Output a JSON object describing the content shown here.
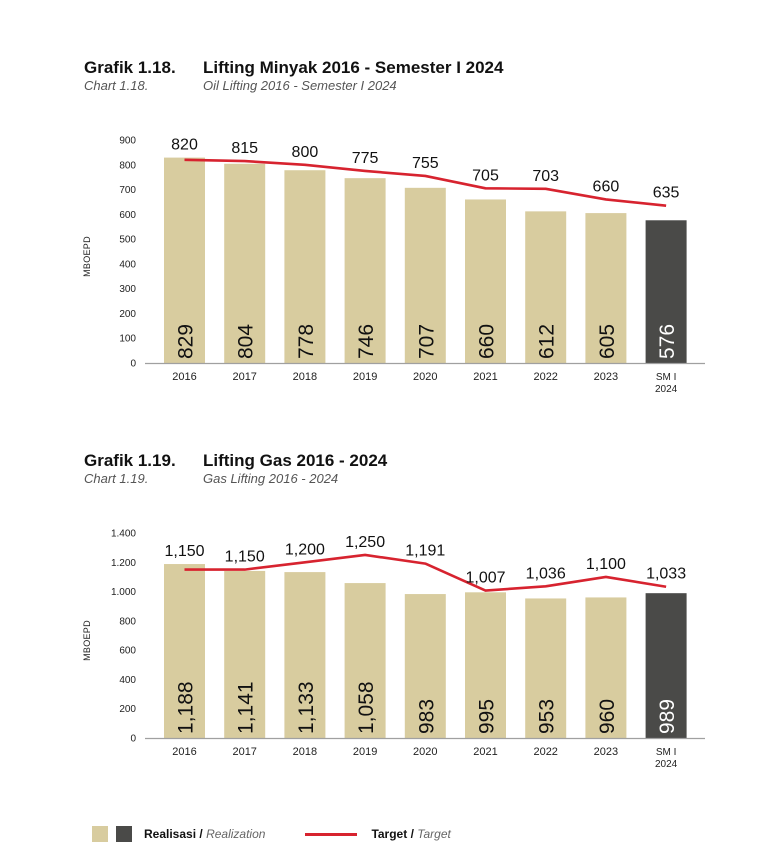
{
  "chart_data": [
    {
      "type": "bar",
      "id": "oil",
      "label_id": "Grafik 1.18.",
      "label_en": "Chart 1.18.",
      "title": "Lifting Minyak 2016 - Semester I 2024",
      "subtitle": "Oil Lifting 2016 - Semester I 2024",
      "ylabel": "MBOEPD",
      "xlabel": "",
      "ylim": [
        0,
        900
      ],
      "yticks": [
        0,
        100,
        200,
        300,
        400,
        500,
        600,
        700,
        800,
        900
      ],
      "ytick_labels": [
        "0",
        "100",
        "200",
        "300",
        "400",
        "500",
        "600",
        "700",
        "800",
        "900"
      ],
      "categories": [
        "2016",
        "2017",
        "2018",
        "2019",
        "2020",
        "2021",
        "2022",
        "2023",
        "SM I 2024"
      ],
      "series": [
        {
          "name": "Realisasi / Realization",
          "kind": "bar",
          "values": [
            829,
            804,
            778,
            746,
            707,
            660,
            612,
            605,
            576
          ],
          "labels": [
            "829",
            "804",
            "778",
            "746",
            "707",
            "660",
            "612",
            "605",
            "576"
          ]
        },
        {
          "name": "Target / Target",
          "kind": "line",
          "values": [
            820,
            815,
            800,
            775,
            755,
            705,
            703,
            660,
            635
          ],
          "labels": [
            "820",
            "815",
            "800",
            "775",
            "755",
            "705",
            "703",
            "660",
            "635"
          ]
        }
      ],
      "highlight_last": true,
      "grid": false
    },
    {
      "type": "bar",
      "id": "gas",
      "label_id": "Grafik 1.19.",
      "label_en": "Chart 1.19.",
      "title": "Lifting Gas 2016 - 2024",
      "subtitle": "Gas Lifting 2016 - 2024",
      "ylabel": "MBOEPD",
      "xlabel": "",
      "ylim": [
        0,
        1400
      ],
      "yticks": [
        0,
        200,
        400,
        600,
        800,
        1000,
        1200,
        1400
      ],
      "ytick_labels": [
        "0",
        "200",
        "400",
        "600",
        "800",
        "1.000",
        "1.200",
        "1.400"
      ],
      "categories": [
        "2016",
        "2017",
        "2018",
        "2019",
        "2020",
        "2021",
        "2022",
        "2023",
        "SM I 2024"
      ],
      "series": [
        {
          "name": "Realisasi / Realization",
          "kind": "bar",
          "values": [
            1188,
            1141,
            1133,
            1058,
            983,
            995,
            953,
            960,
            989
          ],
          "labels": [
            "1,188",
            "1,141",
            "1,133",
            "1,058",
            "983",
            "995",
            "953",
            "960",
            "989"
          ]
        },
        {
          "name": "Target / Target",
          "kind": "line",
          "values": [
            1150,
            1150,
            1200,
            1250,
            1191,
            1007,
            1036,
            1100,
            1033
          ],
          "labels": [
            "1,150",
            "1,150",
            "1,200",
            "1,250",
            "1,191",
            "1,007",
            "1,036",
            "1,100",
            "1,033"
          ]
        }
      ],
      "highlight_last": true,
      "grid": false
    }
  ],
  "legend": {
    "realization_bold": "Realisasi",
    "realization_sep": " / ",
    "realization_italic": "Realization",
    "target_bold": "Target",
    "target_sep": " / ",
    "target_italic": "Target",
    "position": "bottom-left"
  },
  "colors": {
    "bar": "#d8cc9f",
    "bar_highlight": "#4a4a48",
    "target_line": "#d7232f",
    "axis": "#a0a0a0"
  }
}
